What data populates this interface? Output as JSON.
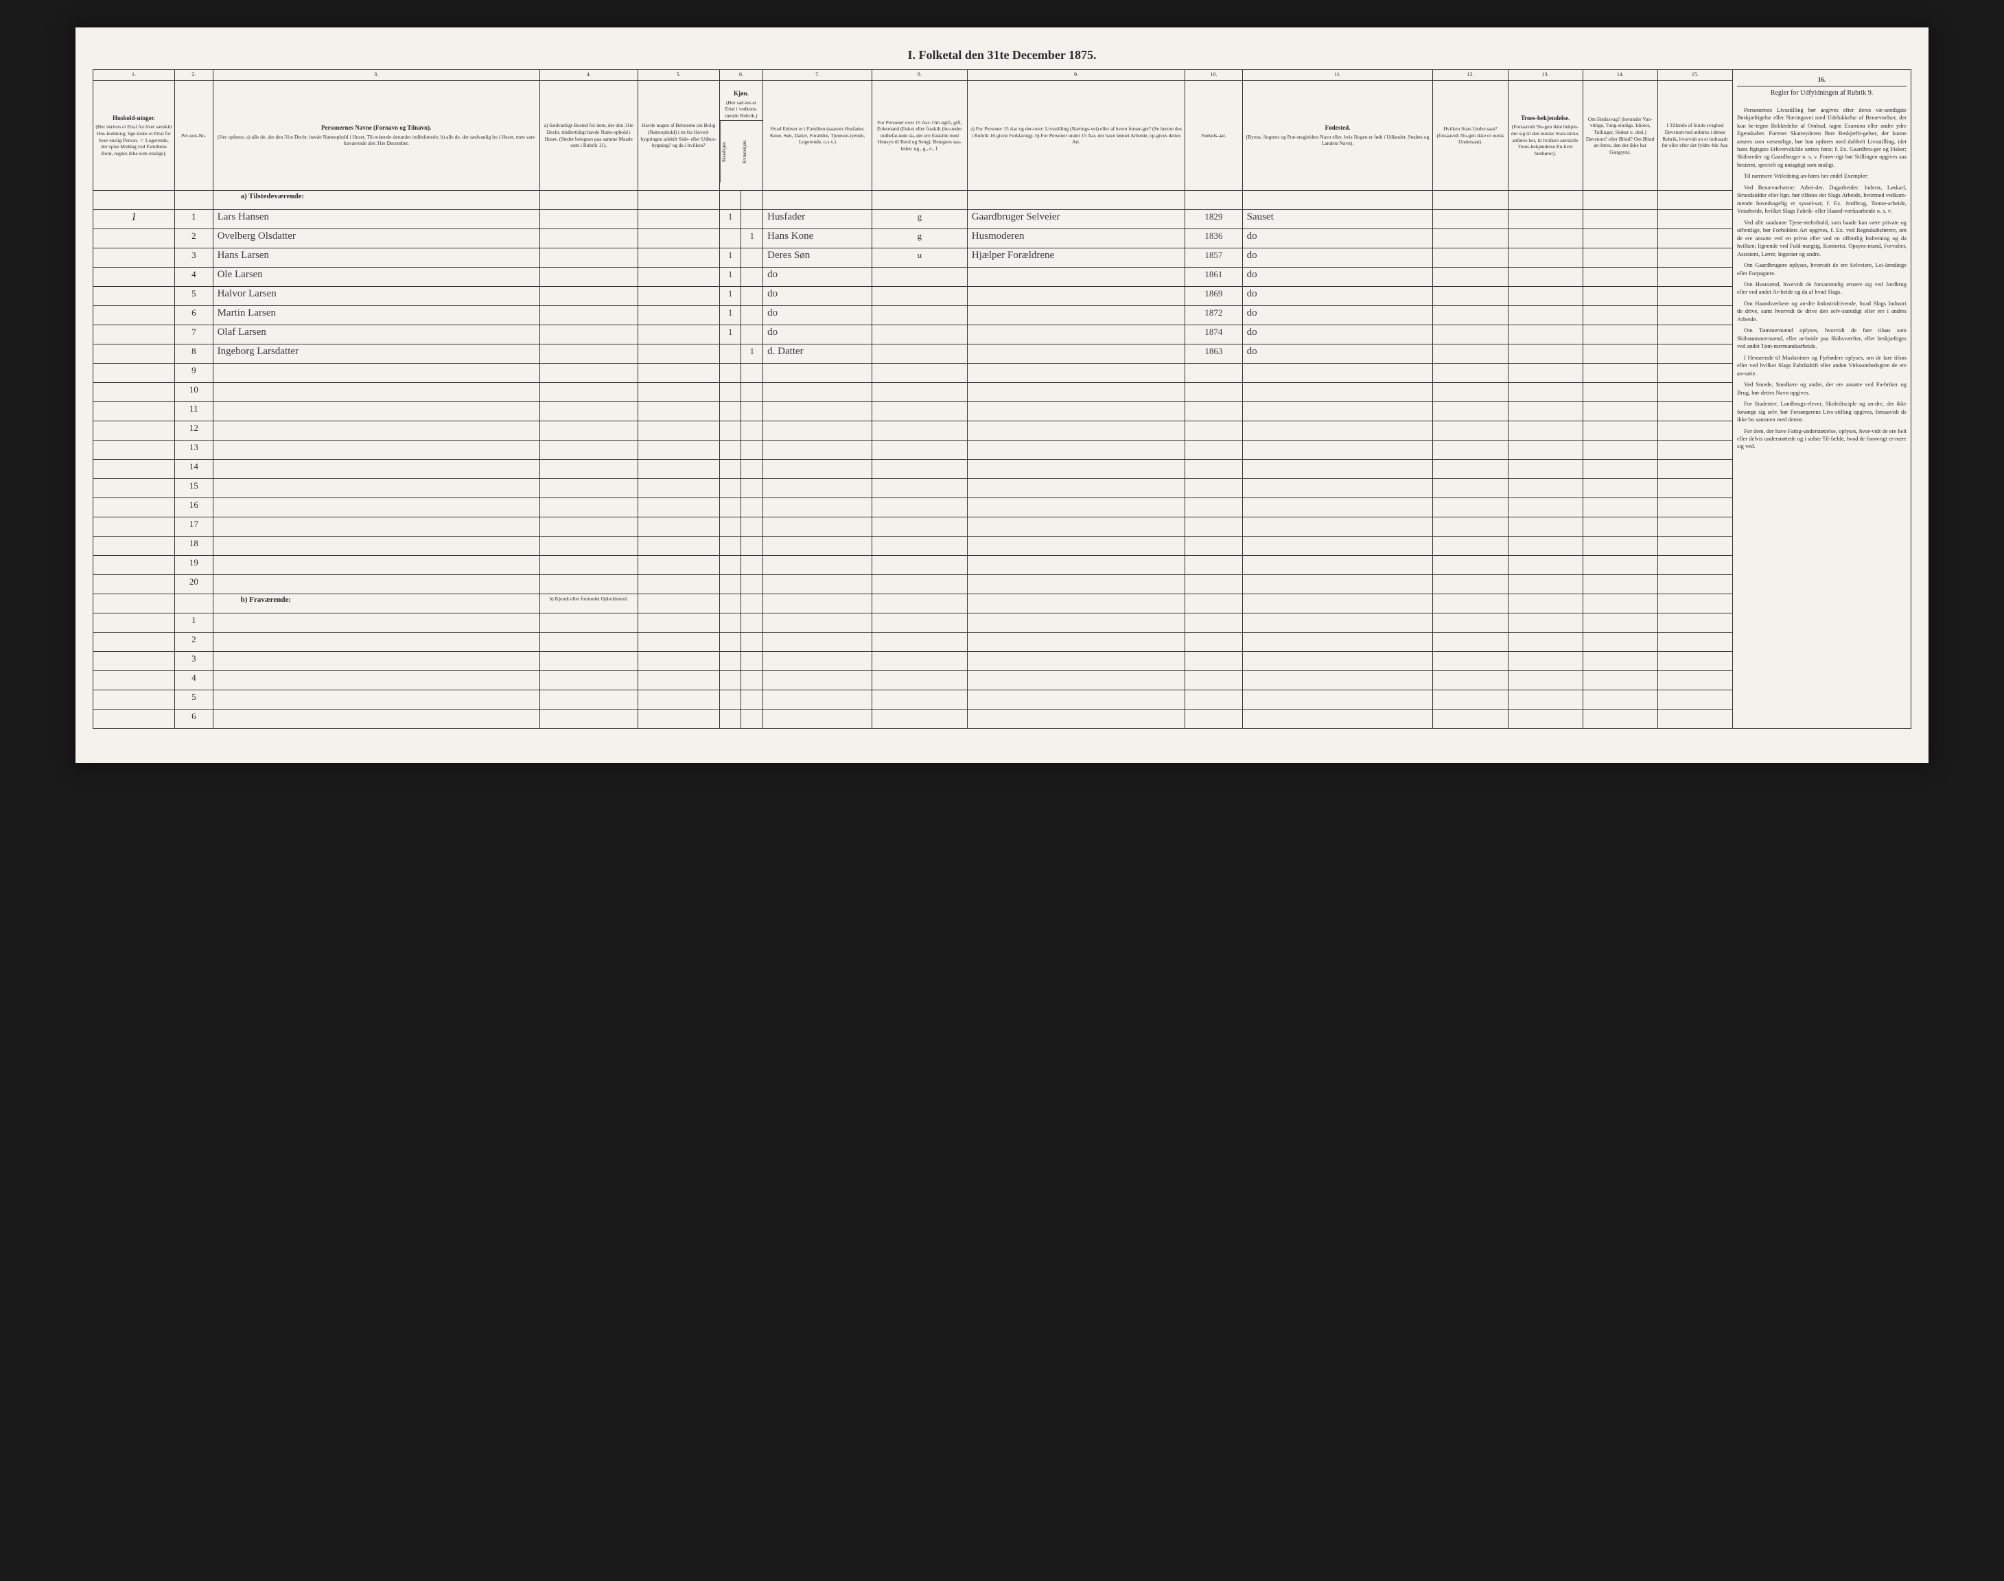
{
  "title": "I. Folketal den 31te December 1875.",
  "columns": {
    "nums": [
      "1.",
      "2.",
      "3.",
      "4.",
      "5.",
      "6.",
      "7.",
      "8.",
      "9.",
      "10.",
      "11.",
      "12.",
      "13.",
      "14.",
      "15.",
      "16."
    ],
    "col6_label": "Kjøn.",
    "col6_sub_hint": "(Her sæt-tes et Ettal i vedkom-mende Rubrik.)",
    "col6_m": "Mandkjøn.",
    "col6_k": "Kvindekjøn.",
    "headers": {
      "1": {
        "title": "Hushold-ninger.",
        "body": "(Her skrives et Ettal for hver særskilt Hus-holdning; lige-ledes et Ettal for hver enslig Person. ☞ Logerende, der spise Middag ved Familiens Bord, regnes ikke som enslige)."
      },
      "2": {
        "title": "",
        "body": "Per-son-No."
      },
      "3": {
        "title": "Personernes Navne (Fornavn og Tilnavn).",
        "body": "(Her opføres: a) alle de, der den 31te Decbr. havde Natteophold i Huset, Til-reisende derunder indbefattede; b) alle de, der sædvanlig bo i Huset, men vare fraværende den 31te December."
      },
      "4": {
        "title": "",
        "body": "a) Sædvanligt Bosted for dem, der den 31te Decbr. midlertidigt havde Natte-ophold i Huset. (Stedet betegnes paa samme Maade som i Rubrik 11)."
      },
      "5": {
        "title": "",
        "body": "Havde nogen af Beboerne sin Bolig (Natteophold) i en fra Hoved-bygningen adskilt Side- eller Udhus-bygning? og da i hvilken?"
      },
      "7": {
        "title": "",
        "body": "Hvad Enhver er i Familien (saasom Husfader, Kone, Søn, Datter, Forældre, Tjeneste-tyende, Logerende, o.s.v.)"
      },
      "8": {
        "title": "",
        "body": "For Personer over 15 Aar: Om ugift, gift, Enkemand (Enke) eller fraskilt (be-under indbefat-tede da, der ere fraskilte med Hensyn til Bord og Seng). Betegnes saa-ledes: ug., g., e., f."
      },
      "9": {
        "title": "",
        "body": "a) For Personer 15 Aar og der-over: Livsstilling (Nærings-vei) eller af hvem forsør-get? (Se herom des i Rubrik 16 givne Forklaring). b) For Personer under 15 Aar, der have lønnet Arbeide, op-gives dettes Art."
      },
      "10": {
        "title": "",
        "body": "Fødsels-aar."
      },
      "11": {
        "title": "Fødested.",
        "body": "(Byens, Sognets og Præ-stegjeldets Navn eller, hvis Nogen er født i Udlandet, Stedets og Landets Navn)."
      },
      "12": {
        "title": "",
        "body": "Hvilken Stats Under-saat? (forsaavidt No-gen ikke er norsk Undersaat)."
      },
      "13": {
        "title": "Troes-bekjendelse.",
        "body": "(Forsaavidt No-gen ikke bekjen-der sig til den norske Stats-kirke, anføres her, til hvilken særskilte Troes-bekjendelse En-hver henhører)."
      },
      "14": {
        "title": "",
        "body": "Om Sindssvag? (herunder Van-vittige, Tung-sindige, Idioter, Tullinger, Sinker o. desl.) Døvstum? eller Blind? Om Blind an-føres, den der ikke har Gangsyn)."
      },
      "15": {
        "title": "",
        "body": "I Tilfælde af Sinds-svaghed Døvstum-hed anføres i denne Rubrik, hvorvidt en er indtraadt før eller efter det fyldte 4de Aar."
      },
      "16": {
        "title": "",
        "body": "Regler for Udfyldningen af Rubrik 9."
      }
    }
  },
  "sections": {
    "a": "a) Tilstedeværende:",
    "b": "b) Fraværende:",
    "b_col4": "b) Kjendt eller formodet Opholdssted."
  },
  "rows_a": [
    {
      "n": "1",
      "h": "1",
      "name": "Lars Hansen",
      "c6m": "1",
      "c6k": "",
      "fam": "Husfader",
      "civ": "g",
      "occ": "Gaardbruger Selveier",
      "yr": "1829",
      "place": "Sauset"
    },
    {
      "n": "2",
      "h": "",
      "name": "Ovelberg Olsdatter",
      "c6m": "",
      "c6k": "1",
      "fam": "Hans Kone",
      "civ": "g",
      "occ": "Husmoderen",
      "yr": "1836",
      "place": "do"
    },
    {
      "n": "3",
      "h": "",
      "name": "Hans Larsen",
      "c6m": "1",
      "c6k": "",
      "fam": "Deres Søn",
      "civ": "u",
      "occ": "Hjælper Forældrene",
      "yr": "1857",
      "place": "do"
    },
    {
      "n": "4",
      "h": "",
      "name": "Ole Larsen",
      "c6m": "1",
      "c6k": "",
      "fam": "do",
      "civ": "",
      "occ": "",
      "yr": "1861",
      "place": "do"
    },
    {
      "n": "5",
      "h": "",
      "name": "Halvor Larsen",
      "c6m": "1",
      "c6k": "",
      "fam": "do",
      "civ": "",
      "occ": "",
      "yr": "1869",
      "place": "do"
    },
    {
      "n": "6",
      "h": "",
      "name": "Martin Larsen",
      "c6m": "1",
      "c6k": "",
      "fam": "do",
      "civ": "",
      "occ": "",
      "yr": "1872",
      "place": "do"
    },
    {
      "n": "7",
      "h": "",
      "name": "Olaf Larsen",
      "c6m": "1",
      "c6k": "",
      "fam": "do",
      "civ": "",
      "occ": "",
      "yr": "1874",
      "place": "do"
    },
    {
      "n": "8",
      "h": "",
      "name": "Ingeborg Larsdatter",
      "c6m": "",
      "c6k": "1",
      "fam": "d. Datter",
      "civ": "",
      "occ": "",
      "yr": "1863",
      "place": "do"
    }
  ],
  "blank_a": [
    "9",
    "10",
    "11",
    "12",
    "13",
    "14",
    "15",
    "16",
    "17",
    "18",
    "19",
    "20"
  ],
  "blank_b": [
    "1",
    "2",
    "3",
    "4",
    "5",
    "6"
  ],
  "notes": {
    "header": "Regler for Udfyldningen af Rubrik 9.",
    "p1": "Personernes Livsstilling bør angives efter deres væ-sentligste Beskjæftigelse eller Næringsvei med Udelukkelse af Benævnelser, der kun be-tegne Beklædelse af Ombud, tagne Examina eller andre ydre Egenskaber. Forener Skatteyderen flere Beskjæfti-gelser, der kunne ansees som væsentlige, bør han opføres med dobbelt Livsstilling, idet hans figtigste Erhvervskilde sættes først; f. Ex. Gaardbru-ger og Fisker; Skibsreder og Gaardbruger o. s. v. Forøv-rigt bør Stillingen opgives saa bestemt, specielt og nøiagtigt som muligt.",
    "p2": "Til nærmere Veiledning an-føres her endel Exempler:",
    "p3": "Ved Benævnelserne: Arbei-der, Dagarbeider, Inderst, Løskarl, Strandsidder eller lign. bør tilføies det Slags Arbeide, hvormed vedkom-mende hovedsagelig er syssel-sat; f. Ex. Jordbrug, Tomte-arbeide, Veiarbeide, hvilket Slags Fabrik- eller Haand-værksarbeide o. s. v.",
    "p4": "Ved alle saadanne Tjene-steforhold, som baade kan være private og offentlige, bør Forholdets Art opgives, f. Ex. ved Regnskabsførere, om de ere ansatte ved en privat eller ved en offentlig Indretning og da hvilken; lignende ved Fuld-mægtig, Kontorist, Opsyns-mand, Forvalter, Assistent, Lærer, Ingeniør og andre.",
    "p5": "Om Gaardbrugere oplyses, hvorvidt de ere Selveiere, Lei-lændinge eller Forpagtere.",
    "p6": "Om Husmænd, hvorvidt de forsammelig ernære sig ved Jordbrug eller ved andet Ar-beide og da af hvad Slags.",
    "p7": "Om Haandværkere og an-dre Industridrivende, hvad Slags Industri de drive, samt hvorvidt de drive den selv-stændigt eller ere i andres Arbeide.",
    "p8": "Om Tømmermænd oplyses, hvorvidt de fare tilsøs som Skibstømmermænd, eller ar-beide paa Skibsværfter, eller beskjæftiges ved andet Tøm-mermandsarbeide.",
    "p9": "I Henseende til Maskinister og Fyrbødere oplyses, om de fare tilsøs eller ved hvilket Slags Fabrikdrift eller anden Virksomhedsgren de ere an-satte.",
    "p10": "Ved Smede, Snedkere og andre, der ere ansatte ved Fa-briker og Brug, bør dettes Navn opgives.",
    "p11": "For Studenter, Landbrugs-elever, Skoledisciple og an-dre, der ikke forsørge sig selv, bør Forsørgerens Livs-stilling opgives, forsaavidt de ikke bo sammen med denne.",
    "p12": "For dem, der have Fattig-understøttelse, oplyses, hvor-vidt de ere helt eller delvis understøttede og i sidste Til-fælde, hvad de forøvrigt er-nære sig ved."
  }
}
